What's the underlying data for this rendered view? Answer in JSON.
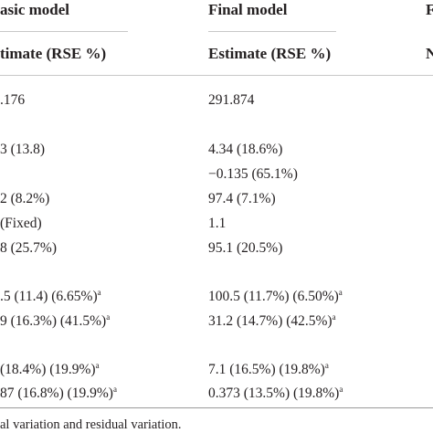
{
  "header": {
    "basic_model": "asic model",
    "final_model": "Final model",
    "third_col_fragment": "F",
    "basic_sub": "timate (RSE %)",
    "final_sub": "Estimate (RSE %)",
    "third_sub_fragment": "N"
  },
  "rows": [
    {
      "basic": ".176",
      "final": "291.874",
      "basic_sup": "",
      "final_sup": ""
    },
    {
      "basic": "3 (13.8)",
      "final": "4.34 (18.6%)",
      "basic_sup": "",
      "final_sup": ""
    },
    {
      "basic": "",
      "final": "−0.135 (65.1%)",
      "basic_sup": "",
      "final_sup": ""
    },
    {
      "basic": "2 (8.2%)",
      "final": "97.4 (7.1%)",
      "basic_sup": "",
      "final_sup": ""
    },
    {
      "basic": "(Fixed)",
      "final": "1.1",
      "basic_sup": "",
      "final_sup": ""
    },
    {
      "basic": "8 (25.7%)",
      "final": "95.1 (20.5%)",
      "basic_sup": "",
      "final_sup": ""
    },
    {
      "basic": ".5 (11.4) (6.65%)",
      "final": "100.5 (11.7%) (6.50%)",
      "basic_sup": "a",
      "final_sup": "a"
    },
    {
      "basic": "9 (16.3%) (41.5%)",
      "final": "31.2 (14.7%) (42.5%)",
      "basic_sup": "a",
      "final_sup": "a"
    },
    {
      "basic": "(18.4%) (19.9%)",
      "final": "7.1 (16.5%) (19.8%)",
      "basic_sup": "a",
      "final_sup": "a"
    },
    {
      "basic": "87 (16.8%) (19.9%)",
      "final": "0.373 (13.5%) (19.8%)",
      "basic_sup": "a",
      "final_sup": "a"
    }
  ],
  "footnote": "al variation and residual variation."
}
